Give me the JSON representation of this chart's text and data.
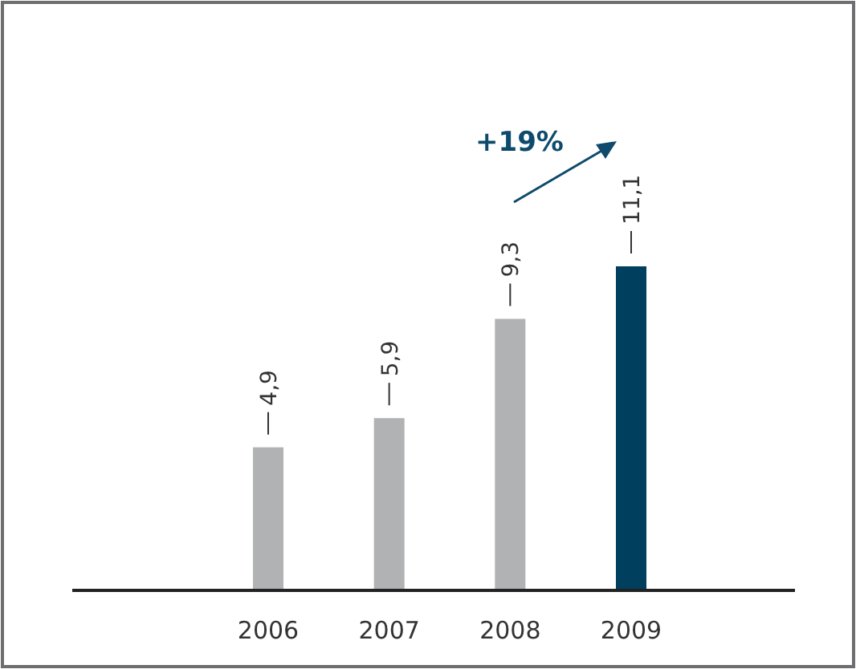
{
  "chart_data": {
    "type": "bar",
    "categories": [
      "2006",
      "2007",
      "2008",
      "2009"
    ],
    "values": [
      4.9,
      5.9,
      9.3,
      11.1
    ],
    "colors": [
      "#b1b2b4",
      "#b1b2b4",
      "#b1b2b4",
      "#003f5e"
    ],
    "data_labels": true,
    "value_labels": [
      "4,9",
      "5,9",
      "9,3",
      "11,1"
    ],
    "annotations": [
      "+19%"
    ]
  }
}
